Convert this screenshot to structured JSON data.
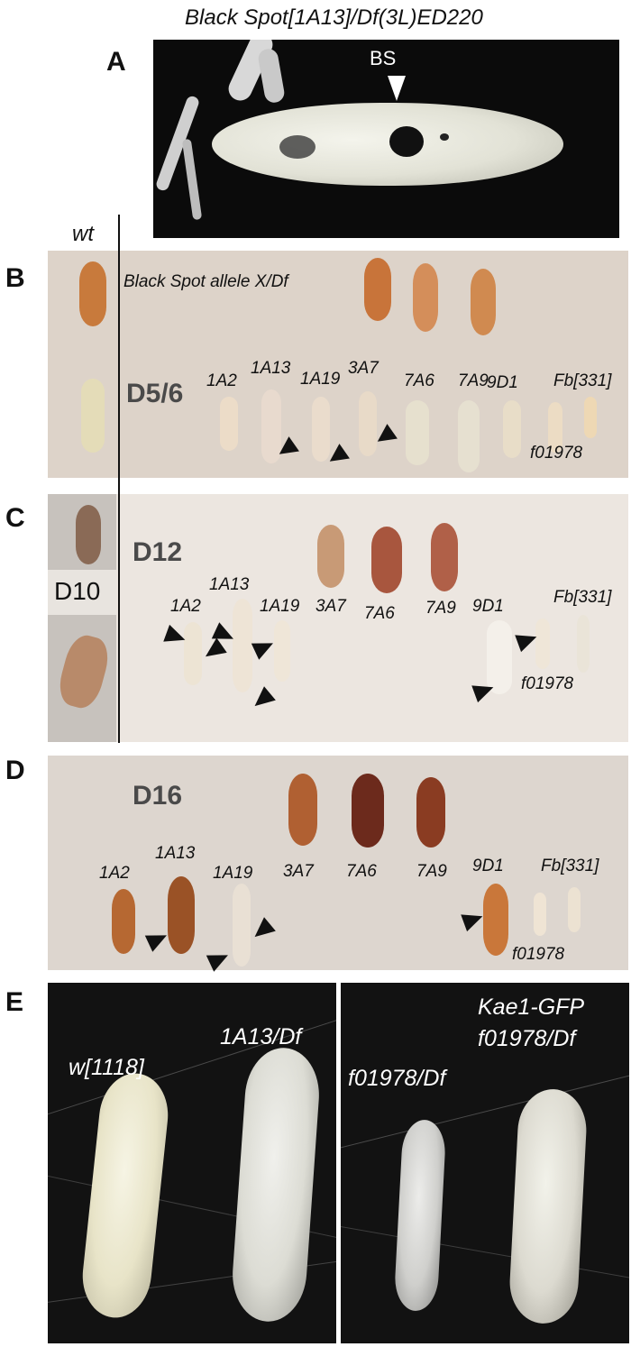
{
  "panel_a": {
    "letter": "A",
    "title": "Black Spot[1A13]/Df(3L)ED220",
    "bs_label": "BS"
  },
  "wt_label": "wt",
  "panel_b": {
    "letter": "B",
    "header": "Black Spot allele X/Df",
    "day": "D5/6",
    "labels": [
      "1A2",
      "1A13",
      "1A19",
      "3A7",
      "7A6",
      "7A9",
      "9D1",
      "Fb[331]",
      "f01978"
    ]
  },
  "panel_c": {
    "letter": "C",
    "day": "D12",
    "inset_day": "D10",
    "labels": [
      "1A2",
      "1A13",
      "1A19",
      "3A7",
      "7A6",
      "7A9",
      "9D1",
      "Fb[331]",
      "f01978"
    ]
  },
  "panel_d": {
    "letter": "D",
    "day": "D16",
    "labels": [
      "1A2",
      "1A13",
      "1A19",
      "3A7",
      "7A6",
      "7A9",
      "9D1",
      "Fb[331]",
      "f01978"
    ]
  },
  "panel_e": {
    "letter": "E",
    "left_labels": [
      "w[1118]",
      "1A13/Df"
    ],
    "right_labels": [
      "Kae1-GFP",
      "f01978/Df",
      "f01978/Df"
    ]
  }
}
